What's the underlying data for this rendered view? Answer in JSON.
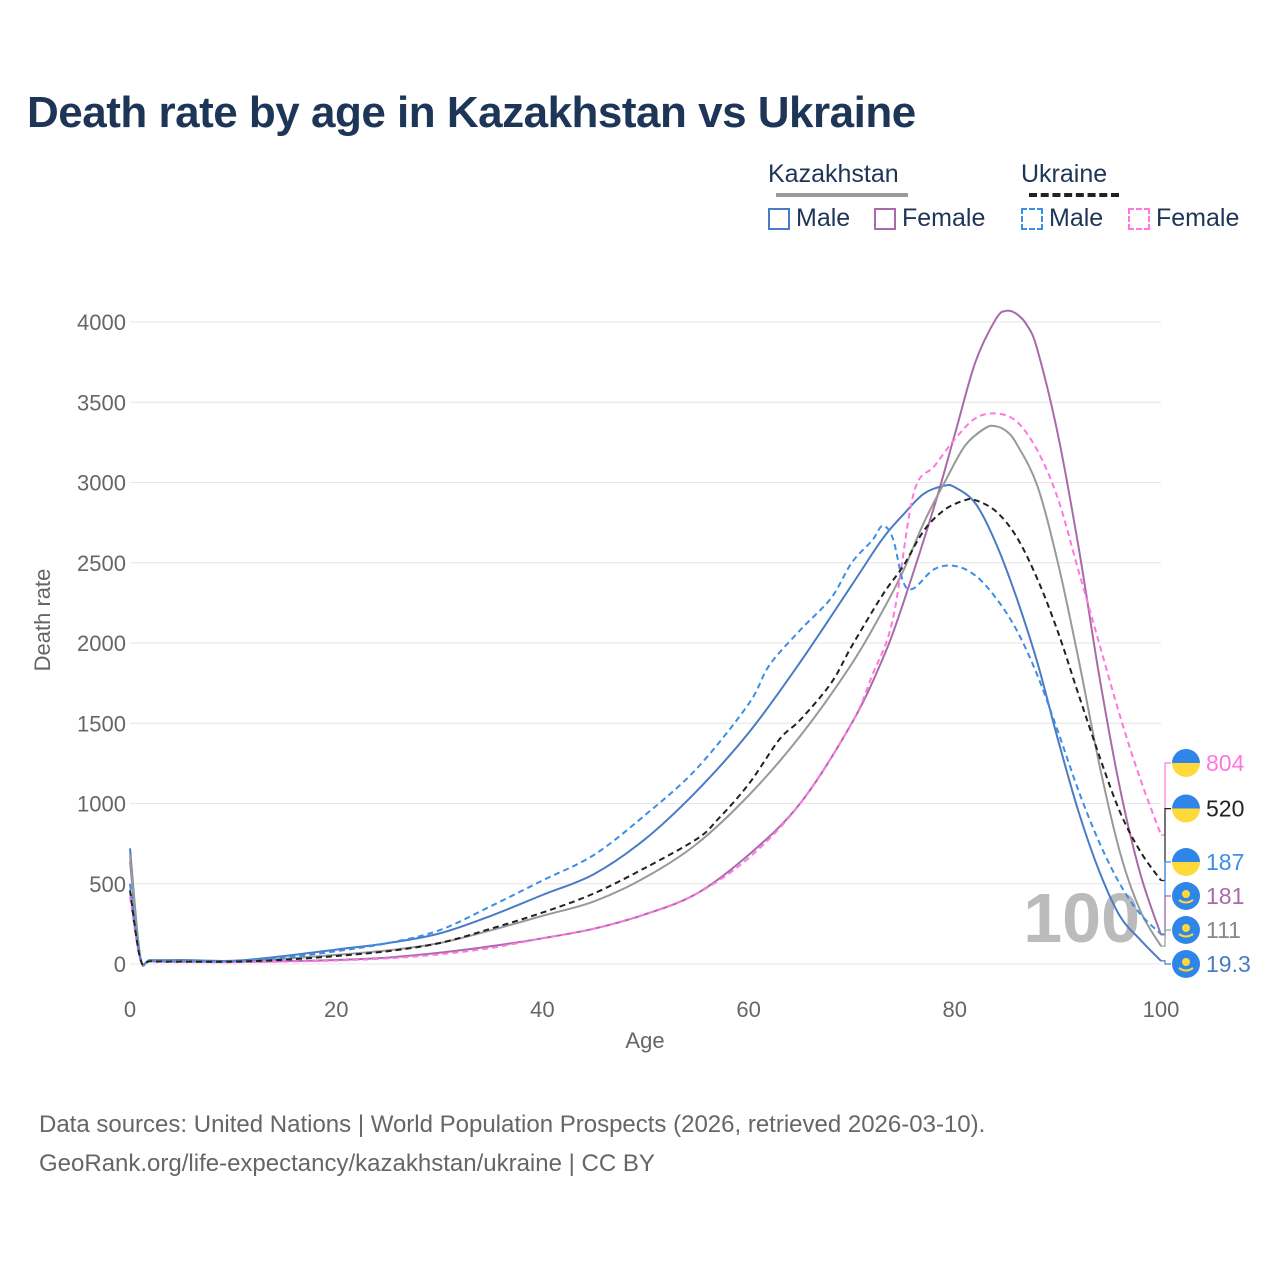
{
  "title": "Death rate by age in Kazakhstan vs Ukraine",
  "legend": {
    "groups": [
      {
        "name": "Kazakhstan",
        "items": [
          {
            "label": "Male",
            "color": "#4a7bc4",
            "dashed": false
          },
          {
            "label": "Female",
            "color": "#a86ba8",
            "dashed": false
          }
        ]
      },
      {
        "name": "Ukraine",
        "items": [
          {
            "label": "Male",
            "color": "#3d8ee8",
            "dashed": true
          },
          {
            "label": "Female",
            "color": "#ff77e0",
            "dashed": true
          }
        ]
      }
    ]
  },
  "footer": {
    "line1": "Data sources: United Nations | World Population Prospects (2026, retrieved 2026-03-10).",
    "line2": "GeoRank.org/life-expectancy/kazakhstan/ukraine | CC BY"
  },
  "chart_data": {
    "type": "line",
    "xlabel": "Age",
    "ylabel": "Death rate",
    "xlim": [
      0,
      100
    ],
    "ylim": [
      0,
      4000
    ],
    "x_ticks": [
      0,
      20,
      40,
      60,
      80,
      100
    ],
    "y_ticks": [
      0,
      500,
      1000,
      1500,
      2000,
      2500,
      3000,
      3500,
      4000
    ],
    "watermark": "100",
    "series": [
      {
        "name": "Kazakhstan Female",
        "country": "Kazakhstan",
        "color": "#a86ba8",
        "dashed": false,
        "end_label": "181",
        "points": [
          [
            0,
            640
          ],
          [
            1,
            40
          ],
          [
            2,
            20
          ],
          [
            5,
            15
          ],
          [
            10,
            12
          ],
          [
            15,
            18
          ],
          [
            20,
            25
          ],
          [
            25,
            40
          ],
          [
            30,
            70
          ],
          [
            35,
            110
          ],
          [
            40,
            160
          ],
          [
            45,
            220
          ],
          [
            50,
            310
          ],
          [
            55,
            440
          ],
          [
            60,
            680
          ],
          [
            65,
            1000
          ],
          [
            70,
            1500
          ],
          [
            73,
            1900
          ],
          [
            75,
            2250
          ],
          [
            78,
            2850
          ],
          [
            80,
            3300
          ],
          [
            82,
            3750
          ],
          [
            84,
            4020
          ],
          [
            85,
            4070
          ],
          [
            86,
            4050
          ],
          [
            87,
            3980
          ],
          [
            88,
            3830
          ],
          [
            90,
            3300
          ],
          [
            92,
            2600
          ],
          [
            94,
            1800
          ],
          [
            96,
            1100
          ],
          [
            98,
            560
          ],
          [
            100,
            181
          ]
        ]
      },
      {
        "name": "Kazakhstan Male",
        "country": "Kazakhstan",
        "color": "#4a7bc4",
        "dashed": false,
        "end_label": "19.3",
        "points": [
          [
            0,
            720
          ],
          [
            1,
            45
          ],
          [
            2,
            25
          ],
          [
            5,
            25
          ],
          [
            10,
            20
          ],
          [
            15,
            50
          ],
          [
            20,
            90
          ],
          [
            25,
            130
          ],
          [
            30,
            190
          ],
          [
            35,
            300
          ],
          [
            40,
            430
          ],
          [
            45,
            560
          ],
          [
            50,
            780
          ],
          [
            55,
            1080
          ],
          [
            60,
            1440
          ],
          [
            65,
            1880
          ],
          [
            70,
            2360
          ],
          [
            73,
            2650
          ],
          [
            75,
            2800
          ],
          [
            77,
            2930
          ],
          [
            79,
            2980
          ],
          [
            80,
            2970
          ],
          [
            82,
            2870
          ],
          [
            84,
            2620
          ],
          [
            86,
            2280
          ],
          [
            88,
            1880
          ],
          [
            90,
            1400
          ],
          [
            92,
            950
          ],
          [
            94,
            580
          ],
          [
            96,
            300
          ],
          [
            98,
            150
          ],
          [
            100,
            19.3
          ]
        ]
      },
      {
        "name": "Kazakhstan Total",
        "country": "Kazakhstan",
        "color": "#999999",
        "dashed": false,
        "end_label": "111",
        "points": [
          [
            0,
            680
          ],
          [
            1,
            42
          ],
          [
            2,
            22
          ],
          [
            5,
            20
          ],
          [
            10,
            16
          ],
          [
            15,
            33
          ],
          [
            20,
            57
          ],
          [
            25,
            85
          ],
          [
            30,
            130
          ],
          [
            35,
            210
          ],
          [
            40,
            300
          ],
          [
            45,
            390
          ],
          [
            50,
            540
          ],
          [
            55,
            750
          ],
          [
            60,
            1050
          ],
          [
            65,
            1420
          ],
          [
            70,
            1870
          ],
          [
            73,
            2200
          ],
          [
            75,
            2450
          ],
          [
            77,
            2750
          ],
          [
            79,
            3000
          ],
          [
            81,
            3230
          ],
          [
            83,
            3340
          ],
          [
            84,
            3350
          ],
          [
            85,
            3320
          ],
          [
            86,
            3240
          ],
          [
            88,
            2980
          ],
          [
            90,
            2500
          ],
          [
            92,
            1900
          ],
          [
            94,
            1250
          ],
          [
            96,
            700
          ],
          [
            98,
            330
          ],
          [
            100,
            111
          ]
        ]
      },
      {
        "name": "Ukraine Female",
        "country": "Ukraine",
        "color": "#ff77e0",
        "dashed": true,
        "end_label": "804",
        "points": [
          [
            0,
            420
          ],
          [
            1,
            30
          ],
          [
            2,
            15
          ],
          [
            5,
            12
          ],
          [
            10,
            12
          ],
          [
            15,
            15
          ],
          [
            20,
            22
          ],
          [
            25,
            35
          ],
          [
            30,
            60
          ],
          [
            35,
            100
          ],
          [
            40,
            160
          ],
          [
            45,
            220
          ],
          [
            50,
            310
          ],
          [
            55,
            440
          ],
          [
            60,
            660
          ],
          [
            65,
            1000
          ],
          [
            70,
            1500
          ],
          [
            72,
            1800
          ],
          [
            74,
            2150
          ],
          [
            76,
            2930
          ],
          [
            78,
            3100
          ],
          [
            80,
            3270
          ],
          [
            82,
            3400
          ],
          [
            84,
            3430
          ],
          [
            86,
            3380
          ],
          [
            88,
            3200
          ],
          [
            90,
            2900
          ],
          [
            92,
            2450
          ],
          [
            94,
            2000
          ],
          [
            96,
            1550
          ],
          [
            98,
            1150
          ],
          [
            100,
            804
          ]
        ]
      },
      {
        "name": "Ukraine Male",
        "country": "Ukraine",
        "color": "#3d8ee8",
        "dashed": true,
        "end_label": "187",
        "points": [
          [
            0,
            500
          ],
          [
            1,
            35
          ],
          [
            2,
            20
          ],
          [
            5,
            18
          ],
          [
            10,
            18
          ],
          [
            15,
            40
          ],
          [
            20,
            80
          ],
          [
            25,
            130
          ],
          [
            30,
            210
          ],
          [
            35,
            360
          ],
          [
            40,
            520
          ],
          [
            45,
            680
          ],
          [
            50,
            930
          ],
          [
            55,
            1220
          ],
          [
            60,
            1620
          ],
          [
            62,
            1860
          ],
          [
            65,
            2080
          ],
          [
            68,
            2280
          ],
          [
            70,
            2500
          ],
          [
            72,
            2640
          ],
          [
            73,
            2730
          ],
          [
            74,
            2650
          ],
          [
            75,
            2380
          ],
          [
            76,
            2340
          ],
          [
            78,
            2460
          ],
          [
            80,
            2480
          ],
          [
            82,
            2420
          ],
          [
            84,
            2280
          ],
          [
            86,
            2080
          ],
          [
            88,
            1800
          ],
          [
            90,
            1450
          ],
          [
            92,
            1080
          ],
          [
            94,
            760
          ],
          [
            96,
            500
          ],
          [
            98,
            310
          ],
          [
            100,
            187
          ]
        ]
      },
      {
        "name": "Ukraine Total",
        "country": "Ukraine",
        "color": "#222222",
        "dashed": true,
        "end_label": "520",
        "points": [
          [
            0,
            460
          ],
          [
            1,
            32
          ],
          [
            2,
            17
          ],
          [
            5,
            15
          ],
          [
            10,
            15
          ],
          [
            15,
            27
          ],
          [
            20,
            50
          ],
          [
            25,
            80
          ],
          [
            30,
            130
          ],
          [
            35,
            220
          ],
          [
            40,
            320
          ],
          [
            45,
            440
          ],
          [
            50,
            600
          ],
          [
            55,
            780
          ],
          [
            57,
            900
          ],
          [
            60,
            1120
          ],
          [
            63,
            1400
          ],
          [
            65,
            1520
          ],
          [
            68,
            1750
          ],
          [
            70,
            1980
          ],
          [
            73,
            2300
          ],
          [
            75,
            2480
          ],
          [
            77,
            2700
          ],
          [
            79,
            2830
          ],
          [
            81,
            2890
          ],
          [
            82,
            2890
          ],
          [
            84,
            2820
          ],
          [
            86,
            2660
          ],
          [
            88,
            2400
          ],
          [
            90,
            2070
          ],
          [
            92,
            1680
          ],
          [
            94,
            1300
          ],
          [
            96,
            950
          ],
          [
            98,
            700
          ],
          [
            100,
            520
          ]
        ]
      }
    ]
  }
}
